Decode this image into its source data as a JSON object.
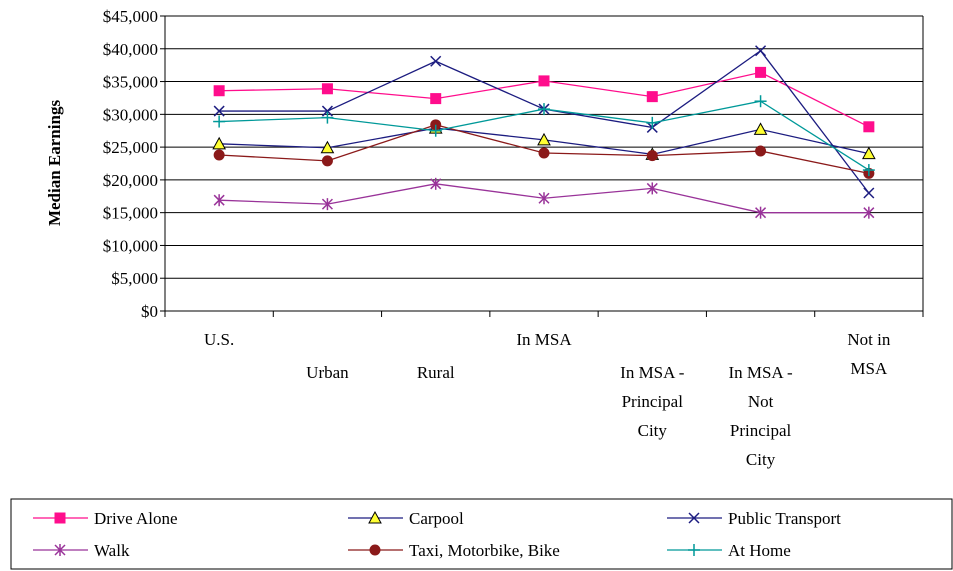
{
  "chart_data": {
    "type": "line",
    "ylabel": "Median Earnings",
    "xlabel": "",
    "ylim": [
      0,
      45000
    ],
    "ytick_step": 5000,
    "ytick_labels": [
      "$0",
      "$5,000",
      "$10,000",
      "$15,000",
      "$20,000",
      "$25,000",
      "$30,000",
      "$35,000",
      "$40,000",
      "$45,000"
    ],
    "categories": [
      "U.S.",
      "Urban",
      "Rural",
      "In MSA",
      "In MSA - Principal City",
      "In MSA - Not Principal City",
      "Not in MSA"
    ],
    "category_lines": [
      [
        "U.S."
      ],
      [
        "Urban"
      ],
      [
        "Rural"
      ],
      [
        "In MSA"
      ],
      [
        "In MSA -",
        "Principal",
        "City"
      ],
      [
        "In MSA -",
        "Not",
        "Principal",
        "City"
      ],
      [
        "Not in",
        "MSA"
      ]
    ],
    "grid": true,
    "legend_position": "bottom",
    "series": [
      {
        "name": "Drive Alone",
        "color": "#ff0d8c",
        "marker": "square",
        "values": [
          33600,
          33900,
          32400,
          35100,
          32700,
          36400,
          28100
        ]
      },
      {
        "name": "Carpool",
        "color": "#1c1c80",
        "marker": "triangle",
        "values": [
          25500,
          24900,
          27900,
          26100,
          23900,
          27700,
          24000
        ]
      },
      {
        "name": "Public Transport",
        "color": "#1c1c80",
        "marker": "x",
        "values": [
          30500,
          30500,
          38100,
          30800,
          28000,
          39700,
          18000
        ]
      },
      {
        "name": "Walk",
        "color": "#993399",
        "marker": "star",
        "values": [
          16900,
          16300,
          19400,
          17200,
          18700,
          15000,
          15000
        ]
      },
      {
        "name": "Taxi, Motorbike, Bike",
        "color": "#8b1a1a",
        "marker": "circle",
        "values": [
          23800,
          22900,
          28400,
          24100,
          23700,
          24400,
          21000
        ]
      },
      {
        "name": "At Home",
        "color": "#009999",
        "marker": "plus",
        "values": [
          28900,
          29500,
          27500,
          30800,
          28700,
          32000,
          21500
        ]
      }
    ]
  }
}
